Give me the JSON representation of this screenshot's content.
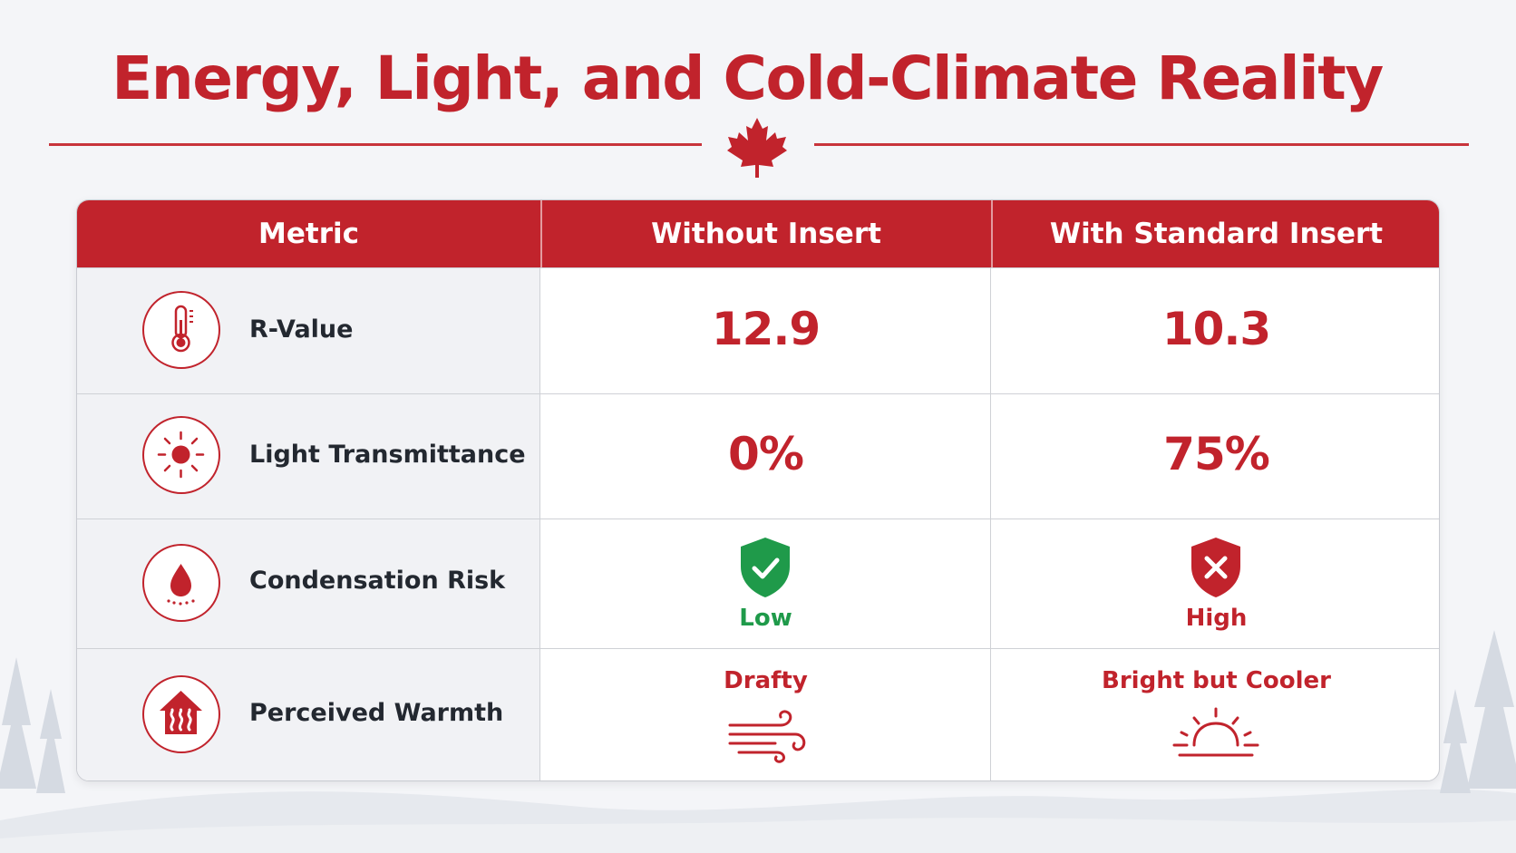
{
  "title": "Energy, Light, and Cold-Climate Reality",
  "table": {
    "headers": [
      "Metric",
      "Without Insert",
      "With Standard Insert"
    ],
    "rows": [
      {
        "icon": "thermometer-icon",
        "metric": "R-Value",
        "without": "12.9",
        "with": "10.3"
      },
      {
        "icon": "sun-icon",
        "metric": "Light Transmittance",
        "without": "0%",
        "with": "75%"
      },
      {
        "icon": "water-drop-icon",
        "metric": "Condensation Risk",
        "without": "Low",
        "without_icon": "shield-check-icon",
        "with": "High",
        "with_icon": "shield-x-icon"
      },
      {
        "icon": "house-heat-icon",
        "metric": "Perceived Warmth",
        "without": "Drafty",
        "without_icon": "wind-icon",
        "with": "Bright but Cooler",
        "with_icon": "sunrise-icon"
      }
    ]
  },
  "colors": {
    "accent": "#c1232c",
    "success": "#1f9a4a",
    "text": "#232830",
    "background": "#f4f5f8"
  }
}
